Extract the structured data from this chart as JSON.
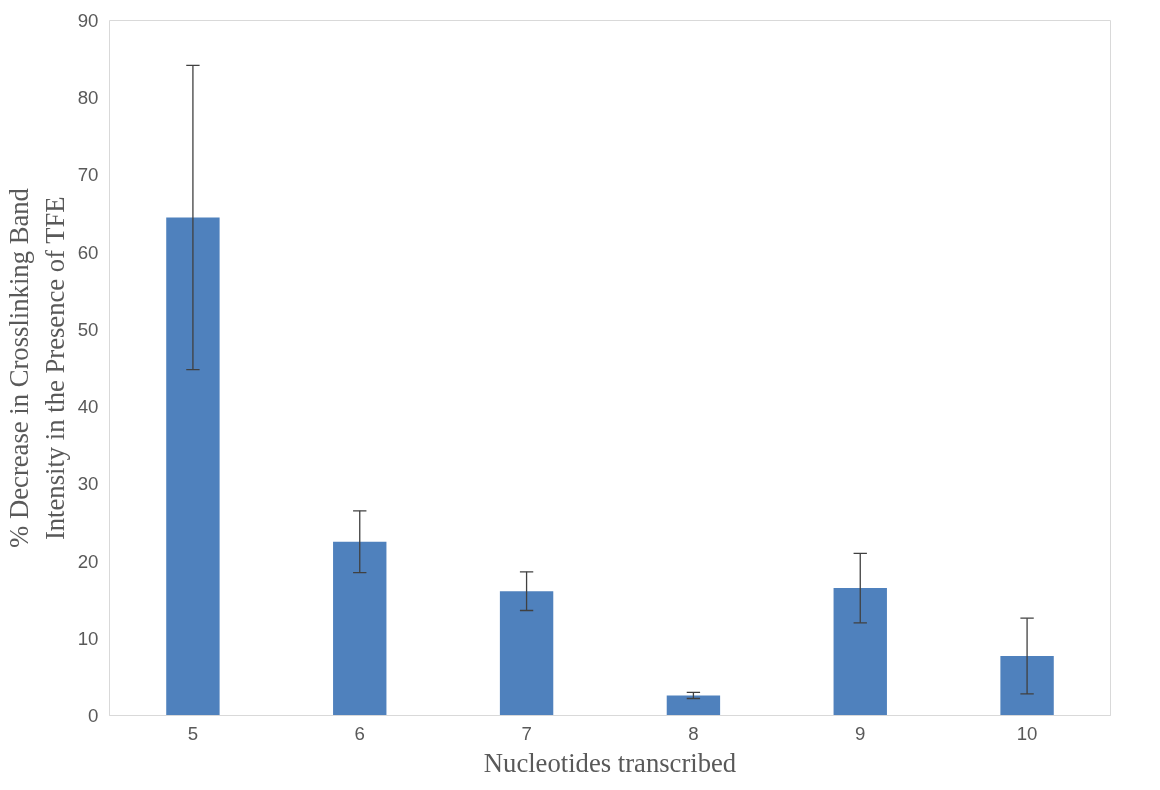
{
  "chart_data": {
    "type": "bar",
    "xlabel": "Nucleotides transcribed",
    "ylabel": "% Decrease in Crosslinking Band Intensity in the Presence of TFE",
    "categories": [
      "5",
      "6",
      "7",
      "8",
      "9",
      "10"
    ],
    "values": [
      64.5,
      22.5,
      16.1,
      2.6,
      16.5,
      7.7
    ],
    "errors": [
      19.7,
      4.0,
      2.5,
      0.4,
      4.5,
      4.9
    ],
    "color": "#4f81bd",
    "ylim": [
      0,
      90
    ],
    "yticks": [
      0,
      10,
      20,
      30,
      40,
      50,
      60,
      70,
      80,
      90
    ],
    "grid": false
  }
}
